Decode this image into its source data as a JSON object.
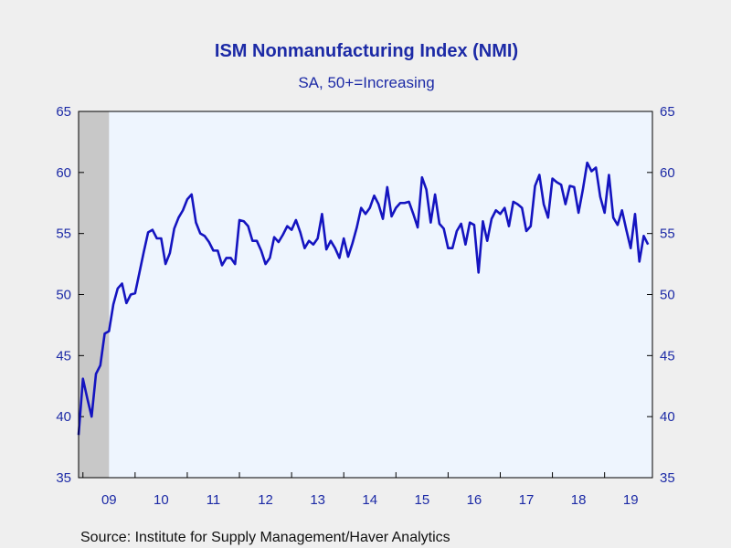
{
  "chart_data": {
    "type": "line",
    "title": "ISM Nonmanufacturing Index (NMI)",
    "subtitle": "SA, 50+=Increasing",
    "source": "Source:  Institute for Supply Management/Haver Analytics",
    "x_start": "2008-12",
    "x_frequency": "monthly",
    "xlim": [
      "2008-12",
      "2019-12"
    ],
    "ylim": [
      35,
      65
    ],
    "y_ticks": [
      "35",
      "40",
      "45",
      "50",
      "55",
      "60",
      "65"
    ],
    "x_ticks": [
      "09",
      "10",
      "11",
      "12",
      "13",
      "14",
      "15",
      "16",
      "17",
      "18",
      "19"
    ],
    "recession_shading": {
      "from": "2008-12",
      "to": "2009-06"
    },
    "grid": false,
    "legend": "none",
    "series": [
      {
        "values": [
          38.5,
          43.1,
          41.5,
          40.0,
          43.5,
          44.2,
          46.8,
          47.0,
          49.2,
          50.5,
          50.9,
          49.3,
          50.0,
          50.1,
          51.8,
          53.5,
          55.1,
          55.3,
          54.6,
          54.6,
          52.5,
          53.4,
          55.4,
          56.3,
          56.9,
          57.8,
          58.2,
          55.9,
          55.0,
          54.8,
          54.3,
          53.6,
          53.6,
          52.4,
          53.0,
          53.0,
          52.5,
          56.1,
          56.0,
          55.6,
          54.4,
          54.4,
          53.6,
          52.5,
          53.0,
          54.7,
          54.3,
          54.9,
          55.6,
          55.3,
          56.1,
          55.1,
          53.8,
          54.4,
          54.1,
          54.6,
          56.6,
          53.7,
          54.4,
          53.8,
          53.0,
          54.6,
          53.1,
          54.2,
          55.5,
          57.1,
          56.6,
          57.1,
          58.1,
          57.4,
          56.2,
          58.8,
          56.4,
          57.1,
          57.5,
          57.5,
          57.6,
          56.6,
          55.5,
          59.6,
          58.6,
          55.9,
          58.2,
          55.8,
          55.4,
          53.8,
          53.8,
          55.2,
          55.8,
          54.1,
          55.9,
          55.7,
          51.8,
          56.0,
          54.4,
          56.2,
          56.9,
          56.6,
          57.1,
          55.6,
          57.6,
          57.4,
          57.1,
          55.2,
          55.6,
          58.9,
          59.8,
          57.4,
          56.3,
          59.5,
          59.2,
          59.0,
          57.4,
          58.9,
          58.8,
          56.7,
          58.6,
          60.8,
          60.1,
          60.4,
          58.0,
          56.7,
          59.8,
          56.3,
          55.7,
          56.9,
          55.3,
          53.8,
          56.6,
          52.7,
          54.8,
          54.1
        ]
      }
    ]
  }
}
